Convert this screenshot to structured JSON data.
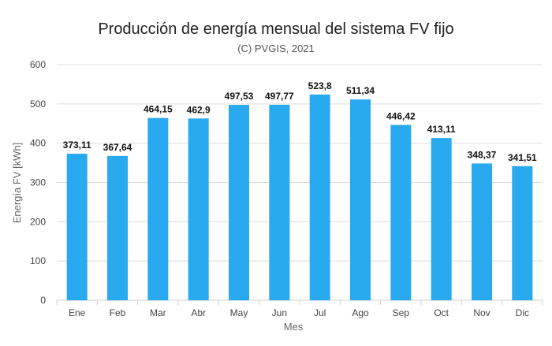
{
  "chart_data": {
    "type": "bar",
    "title": "Producción de energía mensual del sistema FV fijo",
    "subtitle": "(C) PVGIS, 2021",
    "xlabel": "Mes",
    "ylabel": "Energía FV [kWh]",
    "ylim": [
      0,
      600
    ],
    "yticks": [
      0,
      100,
      200,
      300,
      400,
      500,
      600
    ],
    "grid": true,
    "categories": [
      "Ene",
      "Feb",
      "Mar",
      "Abr",
      "May",
      "Jun",
      "Jul",
      "Ago",
      "Sep",
      "Oct",
      "Nov",
      "Dic"
    ],
    "values": [
      373.11,
      367.64,
      464.15,
      462.9,
      497.53,
      497.77,
      523.8,
      511.34,
      446.42,
      413.11,
      348.37,
      341.51
    ],
    "data_labels": [
      "373,11",
      "367,64",
      "464,15",
      "462,9",
      "497,53",
      "497,77",
      "523,8",
      "511,34",
      "446,42",
      "413,11",
      "348,37",
      "341,51"
    ],
    "bar_color": "#29aaf0"
  }
}
